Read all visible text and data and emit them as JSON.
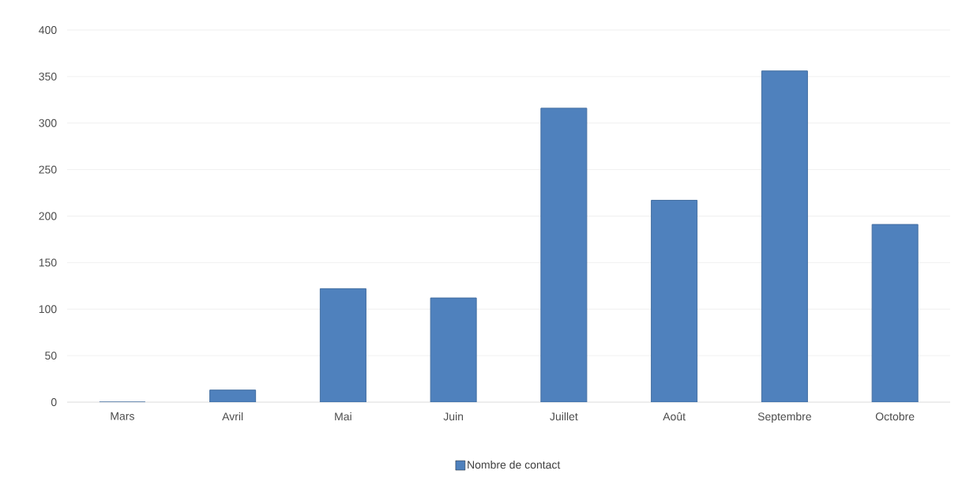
{
  "chart_data": {
    "type": "bar",
    "categories": [
      "Mars",
      "Avril",
      "Mai",
      "Juin",
      "Juillet",
      "Août",
      "Septembre",
      "Octobre"
    ],
    "series": [
      {
        "name": "Nombre de contact",
        "color": "#4f81bd",
        "values": [
          0,
          13,
          122,
          112,
          316,
          217,
          356,
          191
        ]
      }
    ],
    "ylim": [
      0,
      400
    ],
    "yticks": [
      0,
      50,
      100,
      150,
      200,
      250,
      300,
      350,
      400
    ],
    "grid": "y",
    "legend": "bottom"
  }
}
